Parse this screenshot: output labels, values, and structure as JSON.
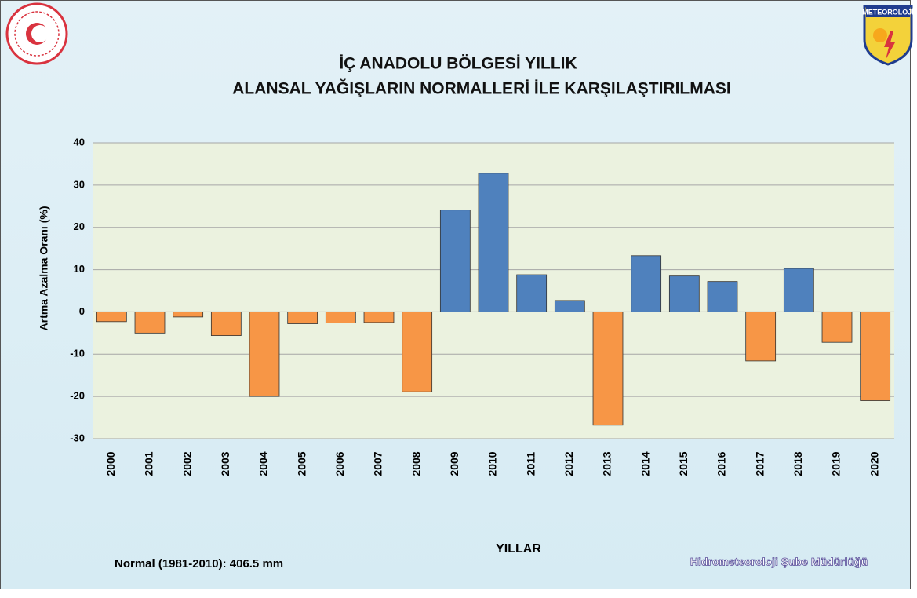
{
  "chart_data": {
    "type": "bar",
    "title_lines": [
      "İÇ ANADOLU BÖLGESİ  YILLIK",
      "ALANSAL YAĞIŞLARIN NORMALLERİ İLE KARŞILAŞTIRILMASI"
    ],
    "y_label": "Artma Azalma Oranı (%)",
    "x_label": "YILLAR",
    "note": "Normal (1981-2010): 406.5 mm",
    "footer": "Hidrometeoroloji Şube Müdürlüğü",
    "logo_text": "METEOROLOJİ",
    "categories": [
      "2000",
      "2001",
      "2002",
      "2003",
      "2004",
      "2005",
      "2006",
      "2007",
      "2008",
      "2009",
      "2010",
      "2011",
      "2012",
      "2013",
      "2014",
      "2015",
      "2016",
      "2017",
      "2018",
      "2019",
      "2020"
    ],
    "values": [
      -2.3,
      -5,
      -1.2,
      -5.6,
      -20,
      -2.8,
      -2.6,
      -2.5,
      -18.9,
      24.1,
      32.8,
      8.8,
      2.7,
      -26.8,
      13.3,
      8.5,
      7.2,
      -11.6,
      10.3,
      -7.2,
      -21
    ],
    "positive_color": "#4f81bd",
    "negative_color": "#f79646",
    "ylim": [
      -30,
      40
    ],
    "yticks": [
      -30,
      -20,
      -10,
      0,
      10,
      20,
      30,
      40
    ],
    "grid": true
  }
}
